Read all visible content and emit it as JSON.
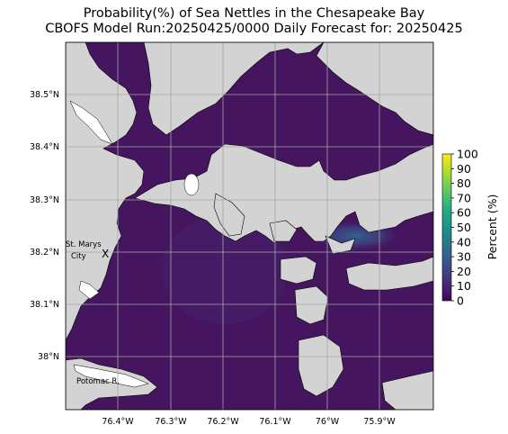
{
  "title": {
    "line1": "Probability(%) of Sea Nettles in the Chesapeake Bay",
    "line2": "CBOFS Model Run:20250425/0000 Daily Forecast for: 20250425"
  },
  "map": {
    "lat_ticks": [
      "38.5°N",
      "38.4°N",
      "38.3°N",
      "38.2°N",
      "38.1°N",
      "38°N"
    ],
    "lon_ticks": [
      "76.4°W",
      "76.3°W",
      "76.2°W",
      "76.1°W",
      "76°W",
      "75.9°W"
    ],
    "grid": true,
    "colors": {
      "land": "#d3d3d3",
      "water_low": "#440154",
      "water_mid": "#46327e",
      "water_high": "#31688e",
      "grid": "#a6a6a6"
    }
  },
  "annotations": {
    "st_marys_line1": "St. Marys",
    "st_marys_line2": "City",
    "st_marys_marker": "X",
    "potomac": "Potomac R."
  },
  "colorbar": {
    "label": "Percent (%)",
    "ticks": [
      "0",
      "10",
      "20",
      "30",
      "40",
      "50",
      "60",
      "70",
      "80",
      "90",
      "100"
    ],
    "min": 0,
    "max": 100,
    "colormap": "viridis"
  }
}
